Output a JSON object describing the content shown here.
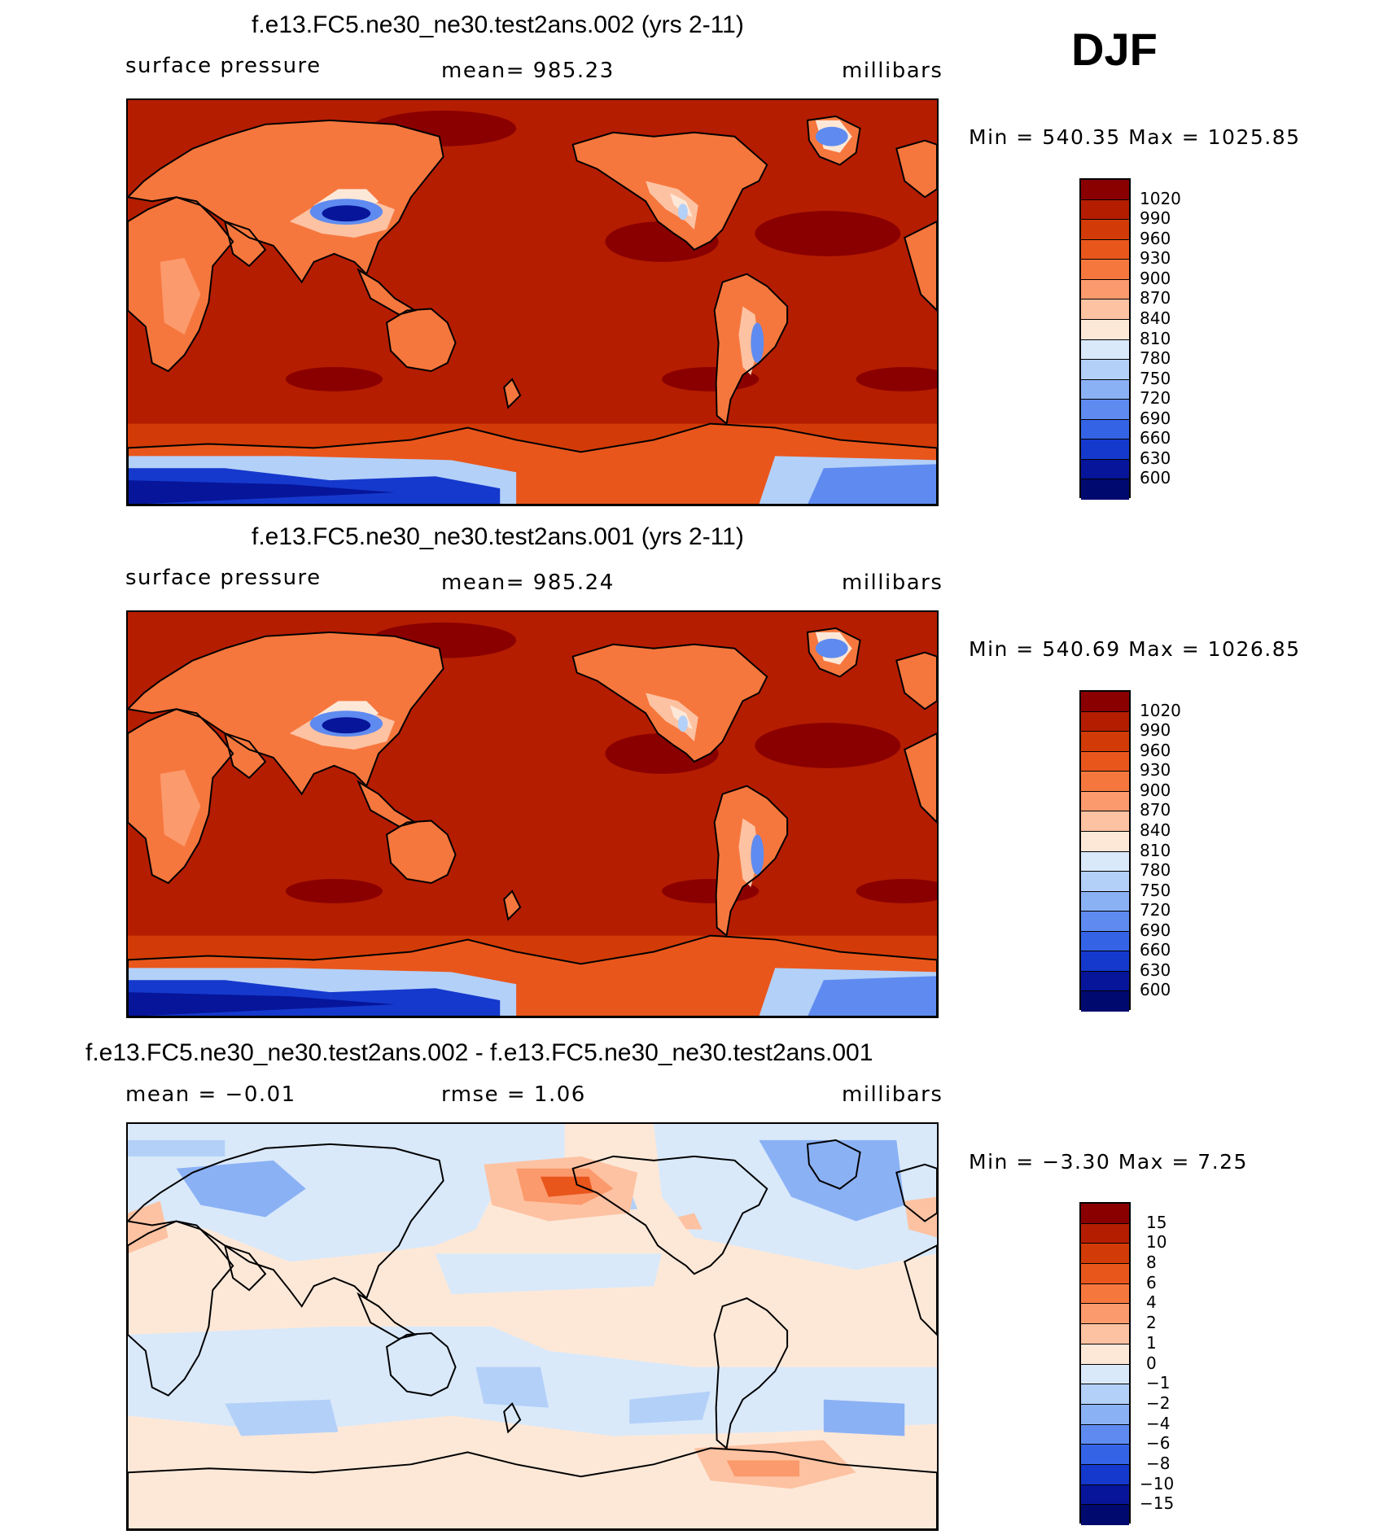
{
  "season": "DJF",
  "panels": [
    {
      "title": "f.e13.FC5.ne30_ne30.test2ans.002 (yrs 2-11)",
      "left_label": "surface pressure",
      "center_label": "mean= 985.23",
      "right_label": "millibars",
      "minmax": "Min = 540.35 Max = 1025.85",
      "scale": "abs"
    },
    {
      "title": "f.e13.FC5.ne30_ne30.test2ans.001 (yrs 2-11)",
      "left_label": "surface pressure",
      "center_label": "mean= 985.24",
      "right_label": "millibars",
      "minmax": "Min = 540.69 Max = 1026.85",
      "scale": "abs"
    },
    {
      "title": "f.e13.FC5.ne30_ne30.test2ans.002 - f.e13.FC5.ne30_ne30.test2ans.001",
      "left_label": "mean = −0.01",
      "center_label": "rmse = 1.06",
      "right_label": "millibars",
      "minmax": "Min = −3.30 Max = 7.25",
      "scale": "diff"
    }
  ],
  "colorbars": {
    "abs": {
      "levels": [
        "1020",
        "990",
        "960",
        "930",
        "900",
        "870",
        "840",
        "810",
        "780",
        "750",
        "720",
        "690",
        "660",
        "630",
        "600"
      ],
      "colors": [
        "#8a0000",
        "#b51d00",
        "#d23b07",
        "#e9561c",
        "#f6773e",
        "#fb9a6c",
        "#fdc2a2",
        "#fde8d8",
        "#d9e9fa",
        "#b3d0f8",
        "#8bb1f5",
        "#5f8bf0",
        "#3463e6",
        "#1539cc",
        "#06159a",
        "#000a6e"
      ]
    },
    "diff": {
      "levels": [
        "15",
        "10",
        "8",
        "6",
        "4",
        "2",
        "1",
        "0",
        "−1",
        "−2",
        "−4",
        "−6",
        "−8",
        "−10",
        "−15"
      ],
      "colors": [
        "#8a0000",
        "#b51d00",
        "#d23b07",
        "#e9561c",
        "#f6773e",
        "#fb9a6c",
        "#fdc2a2",
        "#fde8d8",
        "#d9e9fa",
        "#b3d0f8",
        "#8bb1f5",
        "#5f8bf0",
        "#3463e6",
        "#1539cc",
        "#06159a",
        "#000a6e"
      ]
    }
  },
  "map_colors": {
    "ocean_abs": "#b51d00",
    "high": "#8a0000",
    "band": "#d23b07",
    "land1": "#e9561c",
    "land2": "#f6773e",
    "land3": "#fb9a6c",
    "land4": "#fdc2a2",
    "pale": "#fde8d8",
    "blue1": "#b3d0f8",
    "blue2": "#5f8bf0",
    "blue3": "#1539cc",
    "blue4": "#06159a",
    "diff_bg": "#fde8d8",
    "diff_neg1": "#d9e9fa",
    "diff_neg2": "#b3d0f8",
    "diff_neg3": "#8bb1f5",
    "diff_pos1": "#fdc2a2",
    "diff_pos2": "#fb9a6c",
    "diff_pos3": "#e9561c"
  }
}
